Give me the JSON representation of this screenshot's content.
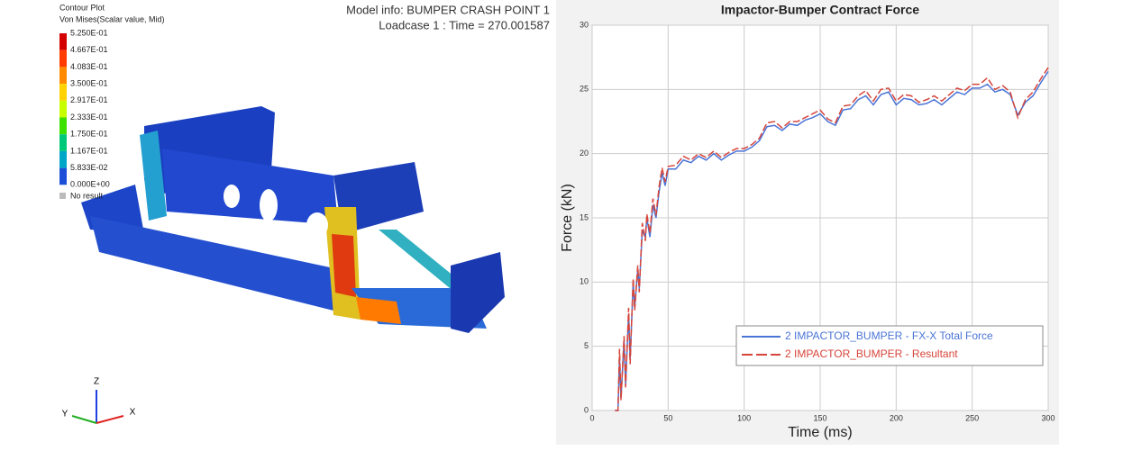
{
  "contour_plot": {
    "title": "Contour Plot",
    "subtitle": "Von Mises(Scalar value, Mid)",
    "levels": [
      "5.250E-01",
      "4.667E-01",
      "4.083E-01",
      "3.500E-01",
      "2.917E-01",
      "2.333E-01",
      "1.750E-01",
      "1.167E-01",
      "5.833E-02",
      "0.000E+00"
    ],
    "colors": [
      "#d40000",
      "#ff3b00",
      "#ff8a00",
      "#ffd200",
      "#c8ff00",
      "#3ee000",
      "#00c87a",
      "#00a6c8",
      "#1c4ed8",
      "#1020b0"
    ],
    "no_result": "No result",
    "model_info": "Model info: BUMPER CRASH POINT 1",
    "loadcase": "Loadcase 1 : Time = 270.001587",
    "axes": {
      "z": "Z",
      "y": "Y",
      "x": "X"
    }
  },
  "chart_data": {
    "type": "line",
    "title": "Impactor-Bumper Contract Force",
    "x_label": "Time (ms)",
    "y_label": "Force (kN)",
    "x": [
      15,
      17,
      18,
      19,
      21,
      22,
      24,
      25,
      27,
      28,
      30,
      31,
      33,
      35,
      36,
      38,
      40,
      42,
      44,
      46,
      48,
      50,
      55,
      60,
      65,
      70,
      75,
      80,
      85,
      90,
      95,
      100,
      105,
      110,
      115,
      120,
      125,
      130,
      135,
      140,
      145,
      150,
      155,
      160,
      165,
      170,
      175,
      180,
      185,
      190,
      195,
      200,
      205,
      210,
      215,
      220,
      225,
      230,
      235,
      240,
      245,
      250,
      255,
      260,
      265,
      270,
      275,
      280,
      285,
      290,
      295,
      300
    ],
    "series": [
      {
        "name": "2 IMPACTOR_BUMPER - FX-X Total Force",
        "color": "#4a74d6",
        "dash": false,
        "values": [
          0,
          0,
          4,
          1,
          5.5,
          2,
          7.5,
          4,
          10,
          8,
          11,
          9.5,
          14,
          13.5,
          15,
          13.5,
          16,
          15,
          17,
          18.5,
          17.5,
          18.8,
          18.8,
          19.5,
          19.3,
          19.8,
          19.5,
          20,
          19.5,
          19.9,
          20.2,
          20.2,
          20.5,
          21,
          22.1,
          22.2,
          21.8,
          22.3,
          22.2,
          22.6,
          22.8,
          23.1,
          22.5,
          22.2,
          23.4,
          23.5,
          24.2,
          24.5,
          23.8,
          24.6,
          24.8,
          23.8,
          24.3,
          24.2,
          23.8,
          23.9,
          24.2,
          23.8,
          24.3,
          24.8,
          24.6,
          25.1,
          25.1,
          25.4,
          24.8,
          25,
          24.6,
          23,
          24,
          24.5,
          25.5,
          26.4
        ]
      },
      {
        "name": "2 IMPACTOR_BUMPER - Resultant",
        "color": "#d6453a",
        "dash": true,
        "values": [
          0,
          0,
          4.8,
          0.8,
          5.8,
          1.8,
          8,
          3.6,
          10.3,
          7.8,
          11.3,
          9.2,
          14.6,
          13.2,
          15.3,
          13.8,
          16.5,
          15.2,
          17.4,
          18.9,
          17.8,
          19,
          19.1,
          19.8,
          19.5,
          20,
          19.7,
          20.2,
          19.7,
          20.1,
          20.4,
          20.4,
          20.7,
          21.2,
          22.4,
          22.5,
          22,
          22.5,
          22.5,
          22.8,
          23.1,
          23.4,
          22.7,
          22.4,
          23.7,
          23.8,
          24.5,
          24.9,
          24.1,
          25,
          25.1,
          24.1,
          24.6,
          24.5,
          24,
          24.2,
          24.5,
          24.1,
          24.6,
          25.1,
          24.9,
          25.4,
          25.4,
          25.9,
          25,
          25.3,
          24.8,
          22.8,
          24.2,
          24.8,
          25.8,
          26.7
        ]
      }
    ],
    "xlim": [
      0,
      300
    ],
    "xticks": [
      0,
      50,
      100,
      150,
      200,
      250,
      300
    ],
    "ylim": [
      0,
      30
    ],
    "yticks": [
      0,
      5,
      10,
      15,
      20,
      25,
      30
    ],
    "grid": true
  }
}
